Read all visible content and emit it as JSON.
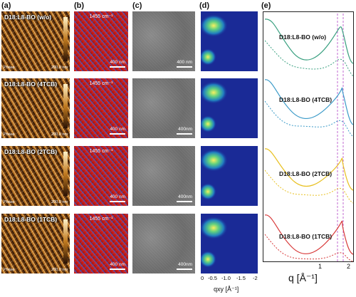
{
  "panel_labels": [
    "(a)",
    "(b)",
    "(c)",
    "(d)",
    "(e)"
  ],
  "afm": {
    "sample_labels": [
      "D18:L8-BO (w/o)",
      "D18:L8-BO (4TCB)",
      "D18:L8-BO (2TCB)",
      "D18:L8-BO (1TCB)"
    ],
    "phase_text": "Phase",
    "scale_text": "200.0 nm"
  },
  "ir": {
    "wavenumber": "1455 cm⁻¹",
    "scale": "400 nm"
  },
  "tem": {
    "scales": [
      "400 nm",
      "400nm",
      "400nm",
      "400nm"
    ]
  },
  "giwaxs": {
    "x_ticks": [
      "0",
      "-0.5",
      "-1.0",
      "-1.5",
      "-2"
    ],
    "xlabel": "qxy [Å⁻¹]"
  },
  "chart_data": {
    "type": "line",
    "xlabel": "q [Å⁻¹]",
    "x_ticks": [
      "1",
      "2"
    ],
    "series": [
      {
        "name": "D18:L8-BO (w/o)",
        "color": "#3aa080"
      },
      {
        "name": "D18:L8-BO (4TCB)",
        "color": "#3a9ac8"
      },
      {
        "name": "D18:L8-BO (2TCB)",
        "color": "#e8c020"
      },
      {
        "name": "D18:L8-BO (1TCB)",
        "color": "#d83a3a"
      }
    ]
  }
}
